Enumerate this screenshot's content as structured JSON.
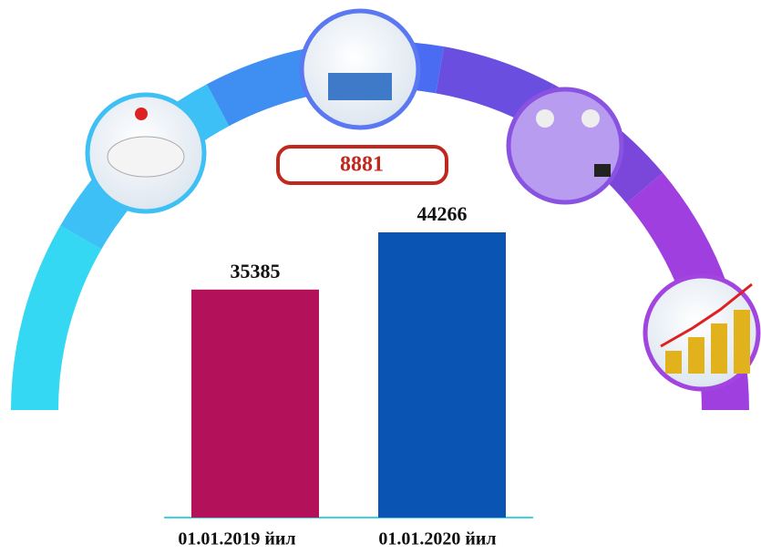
{
  "chart_data": {
    "type": "bar",
    "categories": [
      "01.01.2019 йил",
      "01.01.2020 йил"
    ],
    "values": [
      35385,
      44266
    ],
    "colors": [
      "#b3125a",
      "#0a55b4"
    ],
    "annotation": "8881"
  }
}
